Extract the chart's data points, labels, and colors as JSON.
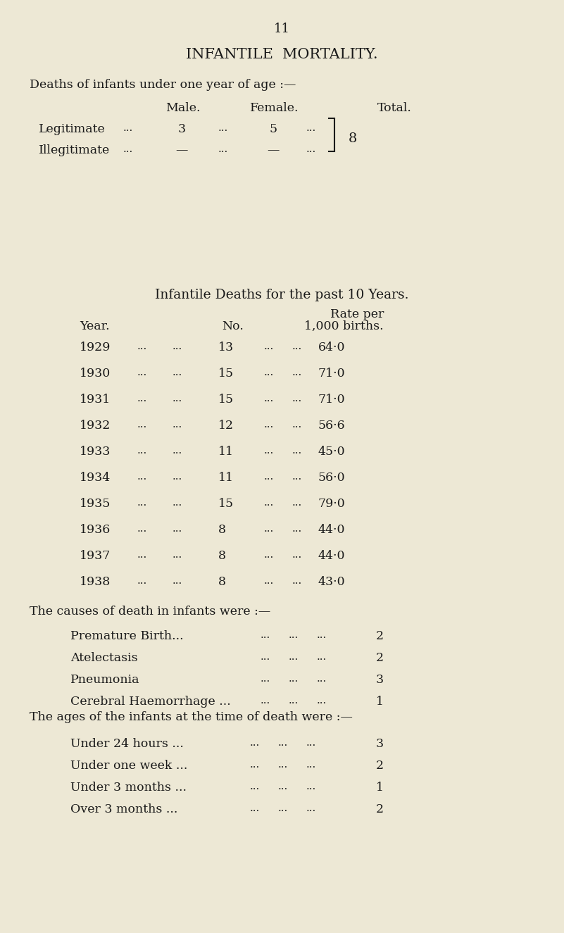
{
  "bg_color": "#ede8d5",
  "text_color": "#1a1a1a",
  "page_number": "11",
  "main_title": "INFANTILE  MORTALITY.",
  "subtitle1": "Deaths of infants under one year of age :—",
  "col_headers": [
    "Male.",
    "Female.",
    "Total."
  ],
  "legit_male": "3",
  "legit_female": "5",
  "illegit_male": "—",
  "illegit_female": "—",
  "total_value": "8",
  "section2_title_parts": [
    "I",
    "NFANTILE ",
    "D",
    "EATHS FOR THE PAST 10 ",
    "Y",
    "EARS."
  ],
  "section2_title": "INFANTILE DEATHS FOR THE PAST 10 YEARS.",
  "col2_year": "Year.",
  "col2_no": "No.",
  "col2_rate1": "Rate per",
  "col2_rate2": "1,000 births.",
  "years_data": [
    [
      "1929",
      "13",
      "64·0"
    ],
    [
      "1930",
      "15",
      "71·0"
    ],
    [
      "1931",
      "15",
      "71·0"
    ],
    [
      "1932",
      "12",
      "56·6"
    ],
    [
      "1933",
      "11",
      "45·0"
    ],
    [
      "1934",
      "11",
      "56·0"
    ],
    [
      "1935",
      "15",
      "79·0"
    ],
    [
      "1936",
      "8",
      "44·0"
    ],
    [
      "1937",
      "8",
      "44·0"
    ],
    [
      "1938",
      "8",
      "43·0"
    ]
  ],
  "causes_intro": "The causes of death in infants were :—",
  "causes": [
    [
      "Premature Birth...",
      "2"
    ],
    [
      "Atelectasis",
      "2"
    ],
    [
      "Pneumonia",
      "3"
    ],
    [
      "Cerebral Haemorrhage ...",
      "1"
    ]
  ],
  "ages_intro": "The ages of the infants at the time of death were :—",
  "ages": [
    [
      "Under 24 hours ...",
      "3"
    ],
    [
      "Under one week ...",
      "2"
    ],
    [
      "Under 3 months ...",
      "1"
    ],
    [
      "Over 3 months ...",
      "2"
    ]
  ]
}
